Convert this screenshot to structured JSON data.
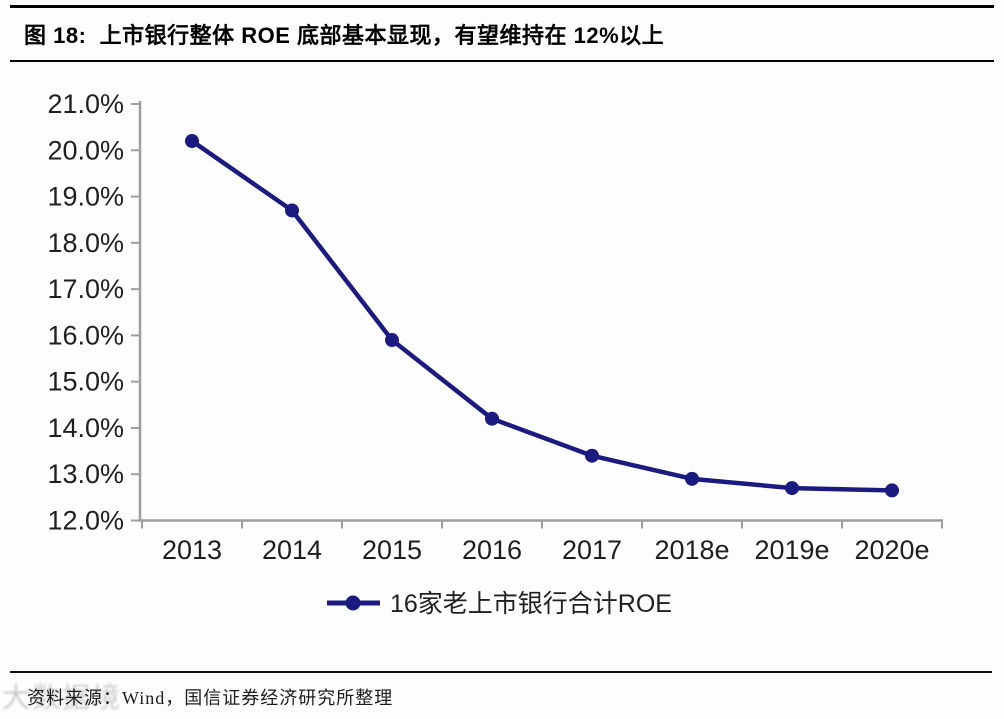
{
  "figure": {
    "title": "图 18:  上市银行整体 ROE 底部基本显现，有望维持在 12%以上",
    "source": "资料来源：Wind，国信证券经济研究所整理",
    "watermark": "大数据境"
  },
  "chart_data": {
    "type": "line",
    "title": "图 18: 上市银行整体 ROE 底部基本显现，有望维持在 12%以上",
    "categories": [
      "2013",
      "2014",
      "2015",
      "2016",
      "2017",
      "2018e",
      "2019e",
      "2020e"
    ],
    "series": [
      {
        "name": "16家老上市银行合计ROE",
        "values": [
          20.2,
          18.7,
          15.9,
          14.2,
          13.4,
          12.9,
          12.7,
          12.65
        ]
      }
    ],
    "xlabel": "",
    "ylabel": "",
    "ylim": [
      12.0,
      21.0
    ],
    "ytick_step": 1.0,
    "ytick_suffix": "%",
    "grid": false,
    "legend_position": "bottom",
    "colors": {
      "line": "#1a1a80",
      "marker": "#1a1a80",
      "axis": "#9e9e9e",
      "tick_label": "#1f1f1f",
      "legend_text": "#1f1f1f"
    }
  }
}
